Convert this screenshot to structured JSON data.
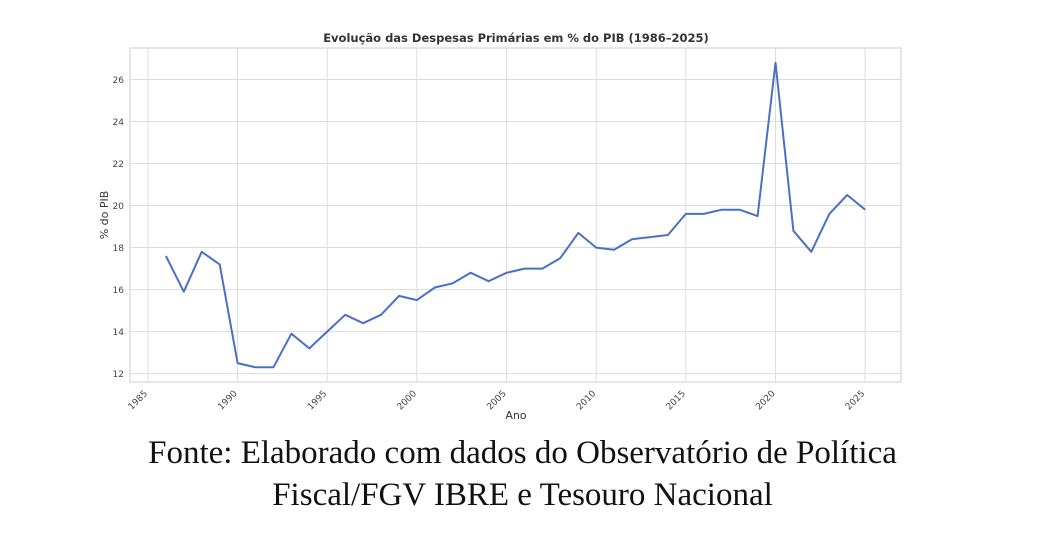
{
  "chart_data": {
    "type": "line",
    "title": "Evolução das Despesas Primárias em % do PIB (1986–2025)",
    "xlabel": "Ano",
    "ylabel": "% do PIB",
    "xlim": [
      1984,
      2027
    ],
    "ylim": [
      11.6,
      27.5
    ],
    "x_ticks": [
      "1985",
      "1990",
      "1995",
      "2000",
      "2005",
      "2010",
      "2015",
      "2020",
      "2025"
    ],
    "y_ticks": [
      "12",
      "14",
      "16",
      "18",
      "20",
      "22",
      "24",
      "26"
    ],
    "grid": true,
    "line_color": "#4c6fc6",
    "x": [
      1986,
      1987,
      1988,
      1989,
      1990,
      1991,
      1992,
      1993,
      1994,
      1995,
      1996,
      1997,
      1998,
      1999,
      2000,
      2001,
      2002,
      2003,
      2004,
      2005,
      2006,
      2007,
      2008,
      2009,
      2010,
      2011,
      2012,
      2013,
      2014,
      2015,
      2016,
      2017,
      2018,
      2019,
      2020,
      2021,
      2022,
      2023,
      2024,
      2025
    ],
    "values": [
      17.6,
      15.9,
      17.8,
      17.2,
      12.5,
      12.3,
      12.3,
      13.9,
      13.2,
      14.0,
      14.8,
      14.4,
      14.8,
      15.7,
      15.5,
      16.1,
      16.3,
      16.8,
      16.4,
      16.8,
      17.0,
      17.0,
      17.5,
      18.7,
      18.0,
      17.9,
      18.4,
      18.5,
      18.6,
      19.6,
      19.6,
      19.8,
      19.8,
      19.5,
      26.8,
      18.8,
      17.8,
      19.6,
      20.5,
      19.8
    ]
  },
  "caption": {
    "line1": "Fonte: Elaborado com dados do Observatório de Política",
    "line2": "Fiscal/FGV IBRE e Tesouro Nacional"
  }
}
